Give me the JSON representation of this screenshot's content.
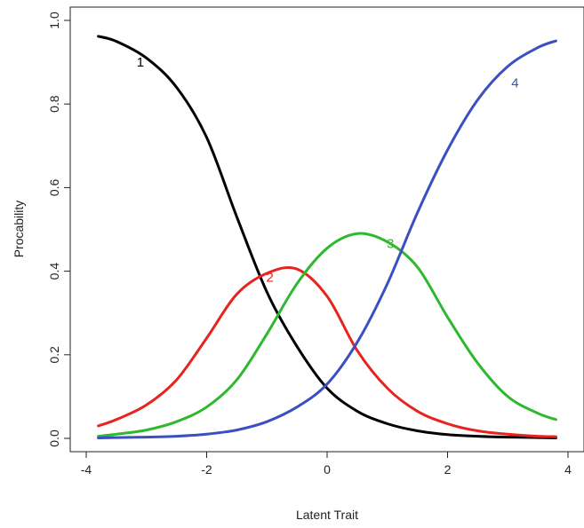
{
  "chart_data": {
    "type": "line",
    "title": "",
    "xlabel": "Latent Trait",
    "ylabel": "Procability",
    "xlim": [
      -4,
      4
    ],
    "ylim": [
      0,
      1.0
    ],
    "x_ticks": [
      "-4",
      "-2",
      "0",
      "2",
      "4"
    ],
    "y_ticks": [
      "0.0",
      "0.2",
      "0.4",
      "0.6",
      "0.8",
      "1.0"
    ],
    "grid": false,
    "legend": "none",
    "x": [
      -3.8,
      -3.5,
      -3.0,
      -2.5,
      -2.0,
      -1.5,
      -1.0,
      -0.5,
      0.0,
      0.5,
      1.0,
      1.5,
      2.0,
      2.5,
      3.0,
      3.5,
      3.8
    ],
    "series": [
      {
        "label": "1",
        "color": "#000000",
        "label_at": [
          -3.1,
          0.89
        ],
        "values": [
          0.962,
          0.95,
          0.91,
          0.84,
          0.72,
          0.53,
          0.35,
          0.22,
          0.12,
          0.065,
          0.035,
          0.018,
          0.009,
          0.005,
          0.003,
          0.002,
          0.001
        ]
      },
      {
        "label": "2",
        "color": "#e8231f",
        "label_at": [
          -0.95,
          0.375
        ],
        "values": [
          0.03,
          0.045,
          0.08,
          0.14,
          0.24,
          0.345,
          0.395,
          0.405,
          0.34,
          0.21,
          0.12,
          0.065,
          0.035,
          0.018,
          0.01,
          0.005,
          0.004
        ]
      },
      {
        "label": "3",
        "color": "#2eb82e",
        "label_at": [
          1.05,
          0.455
        ],
        "values": [
          0.005,
          0.01,
          0.02,
          0.04,
          0.075,
          0.14,
          0.25,
          0.37,
          0.455,
          0.49,
          0.47,
          0.41,
          0.29,
          0.18,
          0.1,
          0.06,
          0.045
        ]
      },
      {
        "label": "4",
        "color": "#3a4fc1",
        "label_at": [
          3.12,
          0.84
        ],
        "values": [
          0.001,
          0.002,
          0.003,
          0.005,
          0.01,
          0.02,
          0.04,
          0.075,
          0.13,
          0.23,
          0.37,
          0.54,
          0.69,
          0.81,
          0.89,
          0.935,
          0.951
        ]
      }
    ]
  }
}
